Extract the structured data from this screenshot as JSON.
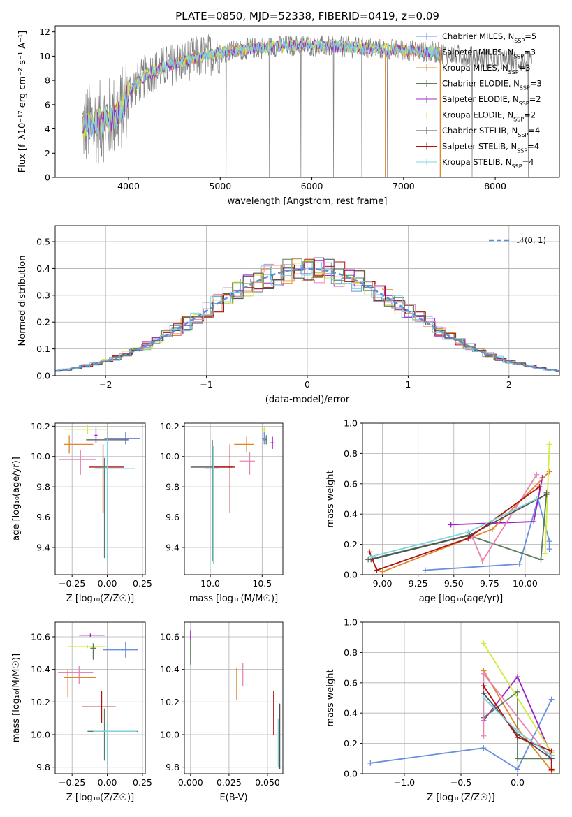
{
  "colors": {
    "Chabrier MILES": "#6a8fdc",
    "Salpeter MILES": "#a020c8",
    "Kroupa MILES": "#e0862a",
    "Chabrier ELODIE": "#5a7d5a",
    "Salpeter ELODIE": "#9b30c0",
    "Kroupa ELODIE": "#d4ea3c",
    "Chabrier STELIB": "#505050",
    "Salpeter STELIB": "#b01010",
    "Kroupa STELIB": "#7fd4e0",
    "extra_pink": "#e884b4",
    "observed": "#808080"
  },
  "chart_data": [
    {
      "id": "spectrum",
      "type": "line",
      "title": "PLATE=0850, MJD=52338, FIBERID=0419, z=0.09",
      "xlabel": "wavelength [Angstrom, rest frame]",
      "ylabel": "Flux [f_λ10⁻¹⁷ erg cm⁻² s⁻¹ A⁻¹]",
      "xlim": [
        3200,
        8700
      ],
      "ylim": [
        0,
        12.5
      ],
      "xticks": [
        4000,
        5000,
        6000,
        7000,
        8000
      ],
      "yticks": [
        0,
        2,
        4,
        6,
        8,
        10,
        12
      ],
      "legend_position": "right",
      "legend": [
        {
          "label": "Chabrier MILES, N",
          "sub": "SSP",
          "tail": "=5"
        },
        {
          "label": "Salpeter MILES, N",
          "sub": "SSP",
          "tail": "=3"
        },
        {
          "label": "Kroupa MILES, N",
          "sub": "SSP",
          "tail": "=3"
        },
        {
          "label": "Chabrier ELODIE, N",
          "sub": "SSP",
          "tail": "=3"
        },
        {
          "label": "Salpeter ELODIE, N",
          "sub": "SSP",
          "tail": "=2"
        },
        {
          "label": "Kroupa ELODIE, N",
          "sub": "SSP",
          "tail": "=2"
        },
        {
          "label": "Chabrier STELIB, N",
          "sub": "SSP",
          "tail": "=4"
        },
        {
          "label": "Salpeter STELIB, N",
          "sub": "SSP",
          "tail": "=4"
        },
        {
          "label": "Kroupa STELIB, N",
          "sub": "SSP",
          "tail": "=4"
        }
      ],
      "continuum": {
        "x": [
          3500,
          3700,
          3900,
          4000,
          4200,
          4500,
          4800,
          5000,
          5300,
          5600,
          5900,
          6200,
          6500,
          6800,
          7000,
          7200,
          7400,
          7600,
          7800,
          8000,
          8200,
          8400
        ],
        "y": [
          4.2,
          4.6,
          5.2,
          7.0,
          8.5,
          9.4,
          10.0,
          10.3,
          10.6,
          10.8,
          10.9,
          10.8,
          10.7,
          10.6,
          10.5,
          10.4,
          10.3,
          10.1,
          9.9,
          9.7,
          9.6,
          9.4
        ]
      },
      "observed_range": [
        3500,
        8400
      ],
      "model_range": [
        3500,
        7400
      ]
    },
    {
      "id": "residuals",
      "type": "histogram",
      "xlabel": "(data-model)/error",
      "ylabel": "Normed distribution",
      "xlim": [
        -2.5,
        2.5
      ],
      "ylim": [
        0,
        0.56
      ],
      "xticks": [
        -2,
        -1,
        0,
        1,
        2
      ],
      "yticks": [
        0.0,
        0.1,
        0.2,
        0.3,
        0.4,
        0.5
      ],
      "legend": "𝒩(0, 1)",
      "legend_position": "top-right",
      "bin_width": 0.1
    },
    {
      "id": "age_vs_Z",
      "type": "errorbar",
      "xlabel": "Z [log₁₀(Z/Z☉)]",
      "ylabel": "age  [log₁₀(age/yr)]",
      "xlim": [
        -0.37,
        0.27
      ],
      "ylim": [
        9.22,
        10.22
      ],
      "xticks": [
        -0.25,
        0.0,
        0.25
      ],
      "xtick_labels": [
        "−0.25",
        "0.00",
        "0.25"
      ],
      "yticks": [
        9.4,
        9.6,
        9.8,
        10.0,
        10.2
      ],
      "ytick_labels": [
        "9.4",
        "9.6",
        "9.8",
        "10.0",
        "10.2"
      ],
      "points": [
        {
          "s": "Chabrier MILES",
          "x": 0.13,
          "y": 10.12,
          "xe": [
            0.15,
            0.1
          ],
          "ye": [
            0.04,
            0.04
          ]
        },
        {
          "s": "Kroupa ELODIE",
          "x": -0.14,
          "y": 10.18,
          "xe": [
            0.15,
            0.14
          ],
          "ye": [
            0.03,
            0.03
          ]
        },
        {
          "s": "Kroupa MILES",
          "x": -0.27,
          "y": 10.08,
          "xe": [
            0.04,
            0.17
          ],
          "ye": [
            0.06,
            0.06
          ]
        },
        {
          "s": "Chabrier STELIB",
          "x": -0.08,
          "y": 10.11,
          "xe": [
            0.07,
            0.23
          ],
          "ye": [
            0.02,
            0.02
          ]
        },
        {
          "s": "Salpeter MILES",
          "x": -0.08,
          "y": 10.14,
          "xe": [
            0.01,
            0.01
          ],
          "ye": [
            0.05,
            0.05
          ]
        },
        {
          "s": "extra_pink",
          "x": -0.19,
          "y": 9.98,
          "xe": [
            0.15,
            0.11
          ],
          "ye": [
            0.1,
            0.06
          ]
        },
        {
          "s": "Salpeter STELIB",
          "x": -0.03,
          "y": 9.93,
          "xe": [
            0.1,
            0.15
          ],
          "ye": [
            0.3,
            0.15
          ]
        },
        {
          "s": "Chabrier ELODIE",
          "x": -0.02,
          "y": 9.93,
          "xe": [
            0.02,
            0.02
          ],
          "ye": [
            0.6,
            0.06
          ]
        },
        {
          "s": "Kroupa STELIB",
          "x": 0.0,
          "y": 9.92,
          "xe": [
            0.09,
            0.2
          ],
          "ye": [
            0.62,
            0.2
          ]
        }
      ]
    },
    {
      "id": "age_vs_mass",
      "type": "errorbar",
      "xlabel": "mass [log₁₀(M/M☉)]",
      "xlim": [
        9.75,
        10.7
      ],
      "ylim": [
        9.22,
        10.22
      ],
      "xticks": [
        10.0,
        10.5
      ],
      "xtick_labels": [
        "10.0",
        "10.5"
      ],
      "yticks": [
        9.4,
        9.6,
        9.8,
        10.0,
        10.2
      ],
      "ytick_labels": [
        "9.4",
        "9.6",
        "9.8",
        "10.0",
        "10.2"
      ],
      "points": [
        {
          "s": "Kroupa ELODIE",
          "x": 10.52,
          "y": 10.18,
          "xe": [
            0.03,
            0.02
          ],
          "ye": [
            0.02,
            0.02
          ]
        },
        {
          "s": "Chabrier ELODIE",
          "x": 10.54,
          "y": 10.11,
          "xe": [
            0.03,
            0.01
          ],
          "ye": [
            0.03,
            0.03
          ]
        },
        {
          "s": "Chabrier MILES",
          "x": 10.52,
          "y": 10.12,
          "xe": [
            0.02,
            0.02
          ],
          "ye": [
            0.04,
            0.04
          ]
        },
        {
          "s": "Salpeter MILES",
          "x": 10.6,
          "y": 10.09,
          "xe": [
            0.02,
            0.02
          ],
          "ye": [
            0.04,
            0.04
          ]
        },
        {
          "s": "Kroupa MILES",
          "x": 10.35,
          "y": 10.08,
          "xe": [
            0.12,
            0.07
          ],
          "ye": [
            0.05,
            0.05
          ]
        },
        {
          "s": "extra_pink",
          "x": 10.38,
          "y": 9.97,
          "xe": [
            0.1,
            0.05
          ],
          "ye": [
            0.09,
            0.06
          ]
        },
        {
          "s": "Chabrier STELIB",
          "x": 10.03,
          "y": 9.93,
          "xe": [
            0.22,
            0.18
          ],
          "ye": [
            0.02,
            0.02
          ]
        },
        {
          "s": "Salpeter STELIB",
          "x": 10.19,
          "y": 9.93,
          "xe": [
            0.17,
            0.05
          ],
          "ye": [
            0.3,
            0.15
          ]
        },
        {
          "s": "Chabrier ELODIE",
          "x": 10.02,
          "y": 9.93,
          "xe": [
            0.01,
            0.01
          ],
          "ye": [
            0.62,
            0.18
          ]
        },
        {
          "s": "Kroupa STELIB",
          "x": 10.03,
          "y": 9.92,
          "xe": [
            0.08,
            0.05
          ],
          "ye": [
            0.63,
            0.15
          ]
        }
      ]
    },
    {
      "id": "weight_vs_age",
      "type": "line",
      "xlabel": "age  [log₁₀(age/yr)]",
      "ylabel": "mass weight",
      "xlim": [
        8.86,
        10.24
      ],
      "ylim": [
        0,
        1.0
      ],
      "xticks": [
        9.0,
        9.25,
        9.5,
        9.75,
        10.0
      ],
      "xtick_labels": [
        "9.00",
        "9.25",
        "9.50",
        "9.75",
        "10.00"
      ],
      "yticks": [
        0.0,
        0.2,
        0.4,
        0.6,
        0.8,
        1.0
      ],
      "ytick_labels": [
        "0.0",
        "0.2",
        "0.4",
        "0.6",
        "0.8",
        "1.0"
      ],
      "series": [
        {
          "s": "Chabrier MILES",
          "x": [
            9.3,
            9.96,
            10.09,
            10.17,
            10.17
          ],
          "y": [
            0.03,
            0.07,
            0.5,
            0.22,
            0.17
          ]
        },
        {
          "s": "Salpeter MILES",
          "x": [
            9.48,
            10.06,
            10.12
          ],
          "y": [
            0.33,
            0.35,
            0.64
          ]
        },
        {
          "s": "Kroupa MILES",
          "x": [
            9.0,
            9.77,
            10.17
          ],
          "y": [
            0.02,
            0.3,
            0.68
          ]
        },
        {
          "s": "Chabrier ELODIE",
          "x": [
            8.9,
            9.6,
            10.11,
            10.15
          ],
          "y": [
            0.1,
            0.26,
            0.1,
            0.54
          ]
        },
        {
          "s": "Kroupa ELODIE",
          "x": [
            10.14,
            10.17
          ],
          "y": [
            0.14,
            0.86
          ]
        },
        {
          "s": "extra_pink",
          "x": [
            9.63,
            9.7,
            10.08
          ],
          "y": [
            0.25,
            0.09,
            0.66
          ]
        },
        {
          "s": "Chabrier STELIB",
          "x": [
            8.92,
            9.61,
            10.15
          ],
          "y": [
            0.1,
            0.26,
            0.53
          ]
        },
        {
          "s": "Salpeter STELIB",
          "x": [
            8.91,
            8.96,
            9.6,
            10.1
          ],
          "y": [
            0.15,
            0.03,
            0.24,
            0.58
          ]
        },
        {
          "s": "Kroupa STELIB",
          "x": [
            8.92,
            9.6,
            10.08
          ],
          "y": [
            0.12,
            0.28,
            0.5
          ]
        }
      ]
    },
    {
      "id": "mass_vs_Z",
      "type": "errorbar",
      "xlabel": "Z [log₁₀(Z/Z☉)]",
      "ylabel": "mass [log₁₀(M/M☉)]",
      "xlim": [
        -0.37,
        0.27
      ],
      "ylim": [
        9.76,
        10.69
      ],
      "xticks": [
        -0.25,
        0.0,
        0.25
      ],
      "xtick_labels": [
        "−0.25",
        "0.00",
        "0.25"
      ],
      "yticks": [
        9.8,
        10.0,
        10.2,
        10.4,
        10.6
      ],
      "ytick_labels": [
        "9.8",
        "10.0",
        "10.2",
        "10.4",
        "10.6"
      ],
      "points": [
        {
          "s": "Salpeter MILES",
          "x": -0.12,
          "y": 10.61,
          "xe": [
            0.08,
            0.1
          ],
          "ye": [
            0.01,
            0.01
          ]
        },
        {
          "s": "Kroupa ELODIE",
          "x": -0.14,
          "y": 10.54,
          "xe": [
            0.14,
            0.13
          ],
          "ye": [
            0.01,
            0.01
          ]
        },
        {
          "s": "Chabrier MILES",
          "x": 0.13,
          "y": 10.52,
          "xe": [
            0.16,
            0.09
          ],
          "ye": [
            0.05,
            0.05
          ]
        },
        {
          "s": "Chabrier ELODIE",
          "x": -0.1,
          "y": 10.53,
          "xe": [
            0.02,
            0.02
          ],
          "ye": [
            0.07,
            0.03
          ]
        },
        {
          "s": "extra_pink",
          "x": -0.2,
          "y": 10.38,
          "xe": [
            0.15,
            0.1
          ],
          "ye": [
            0.07,
            0.04
          ]
        },
        {
          "s": "Kroupa MILES",
          "x": -0.28,
          "y": 10.35,
          "xe": [
            0.03,
            0.2
          ],
          "ye": [
            0.12,
            0.05
          ]
        },
        {
          "s": "Salpeter STELIB",
          "x": -0.04,
          "y": 10.17,
          "xe": [
            0.14,
            0.1
          ],
          "ye": [
            0.1,
            0.1
          ]
        },
        {
          "s": "Chabrier ELODIE",
          "x": -0.02,
          "y": 10.02,
          "xe": [
            0.12,
            0.24
          ],
          "ye": [
            0.18,
            0.14
          ]
        },
        {
          "s": "Kroupa STELIB",
          "x": 0.0,
          "y": 10.02,
          "xe": [
            0.1,
            0.21
          ],
          "ye": [
            0.2,
            0.05
          ]
        }
      ]
    },
    {
      "id": "mass_vs_ebv",
      "type": "errorbar",
      "xlabel": "E(B-V)",
      "xlim": [
        -0.004,
        0.06
      ],
      "ylim": [
        9.76,
        10.69
      ],
      "xticks": [
        0.0,
        0.025,
        0.05
      ],
      "xtick_labels": [
        "0.000",
        "0.025",
        "0.050"
      ],
      "yticks": [
        9.8,
        10.0,
        10.2,
        10.4,
        10.6
      ],
      "ytick_labels": [
        "9.8",
        "10.0",
        "10.2",
        "10.4",
        "10.6"
      ],
      "points": [
        {
          "s": "Salpeter MILES",
          "x": 0.0,
          "y": 10.61,
          "xe": [
            0,
            0
          ],
          "ye": [
            0.03,
            0.03
          ]
        },
        {
          "s": "Chabrier ELODIE",
          "x": 0.0,
          "y": 10.48,
          "xe": [
            0,
            0
          ],
          "ye": [
            0.05,
            0.1
          ]
        },
        {
          "s": "Kroupa MILES",
          "x": 0.03,
          "y": 10.31,
          "xe": [
            0,
            0
          ],
          "ye": [
            0.1,
            0.1
          ]
        },
        {
          "s": "extra_pink",
          "x": 0.034,
          "y": 10.38,
          "xe": [
            0,
            0
          ],
          "ye": [
            0.08,
            0.06
          ]
        },
        {
          "s": "Salpeter STELIB",
          "x": 0.054,
          "y": 10.13,
          "xe": [
            0,
            0
          ],
          "ye": [
            0.13,
            0.14
          ]
        },
        {
          "s": "Chabrier STELIB",
          "x": 0.058,
          "y": 9.99,
          "xe": [
            0,
            0
          ],
          "ye": [
            0.2,
            0.2
          ]
        },
        {
          "s": "Kroupa STELIB",
          "x": 0.057,
          "y": 9.97,
          "xe": [
            0,
            0
          ],
          "ye": [
            0.17,
            0.13
          ]
        }
      ]
    },
    {
      "id": "weight_vs_Z",
      "type": "line",
      "xlabel": "Z [log₁₀(Z/Z☉)]",
      "ylabel": "mass weight",
      "xlim": [
        -1.37,
        0.37
      ],
      "ylim": [
        0,
        1.0
      ],
      "xticks": [
        -1.0,
        -0.5,
        0.0
      ],
      "xtick_labels": [
        "−1.0",
        "−0.5",
        "0.0"
      ],
      "yticks": [
        0.0,
        0.2,
        0.4,
        0.6,
        0.8,
        1.0
      ],
      "ytick_labels": [
        "0.0",
        "0.2",
        "0.4",
        "0.6",
        "0.8",
        "1.0"
      ],
      "series": [
        {
          "s": "Chabrier MILES",
          "x": [
            -1.3,
            -0.3,
            0.0,
            0.3
          ],
          "y": [
            0.07,
            0.17,
            0.03,
            0.49
          ]
        },
        {
          "s": "Salpeter MILES",
          "x": [
            -0.3,
            0.0,
            0.3
          ],
          "y": [
            0.35,
            0.64,
            0.12
          ]
        },
        {
          "s": "Kroupa MILES",
          "x": [
            -0.3,
            0.0,
            0.3
          ],
          "y": [
            0.68,
            0.3,
            0.02
          ]
        },
        {
          "s": "Chabrier ELODIE",
          "x": [
            -0.3,
            0.0,
            0.0,
            0.3
          ],
          "y": [
            0.37,
            0.54,
            0.1,
            0.1
          ]
        },
        {
          "s": "Kroupa ELODIE",
          "x": [
            -0.3,
            0.3
          ],
          "y": [
            0.86,
            0.14
          ]
        },
        {
          "s": "extra_pink",
          "x": [
            -0.3,
            -0.3,
            0.3
          ],
          "y": [
            0.25,
            0.66,
            0.09
          ]
        },
        {
          "s": "Chabrier STELIB",
          "x": [
            -0.3,
            0.0,
            0.3
          ],
          "y": [
            0.53,
            0.26,
            0.1
          ]
        },
        {
          "s": "Salpeter STELIB",
          "x": [
            -0.3,
            0.0,
            0.3,
            0.3
          ],
          "y": [
            0.58,
            0.24,
            0.15,
            0.03
          ]
        },
        {
          "s": "Kroupa STELIB",
          "x": [
            -0.3,
            0.0,
            0.3
          ],
          "y": [
            0.5,
            0.28,
            0.12
          ]
        }
      ]
    }
  ]
}
